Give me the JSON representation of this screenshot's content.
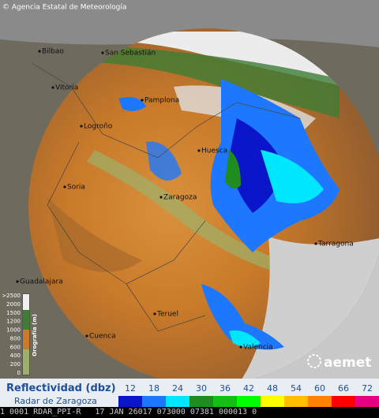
{
  "header": {
    "copyright": "© Agencia Estatal de Meteorología"
  },
  "cities": [
    {
      "name": "Bilbao"
    },
    {
      "name": "San Sebastián"
    },
    {
      "name": "Vitoria"
    },
    {
      "name": "Pamplona"
    },
    {
      "name": "Logroño"
    },
    {
      "name": "Huesca"
    },
    {
      "name": "Soria"
    },
    {
      "name": "Zaragoza"
    },
    {
      "name": "Tarragona"
    },
    {
      "name": "Guadalajara"
    },
    {
      "name": "Teruel"
    },
    {
      "name": "Cuenca"
    },
    {
      "name": "Valencia"
    }
  ],
  "orography": {
    "title": "Orografía (m)",
    "labels": [
      ">2500",
      "2000",
      "1500",
      "1200",
      "1000",
      "800",
      "600",
      "400",
      "200",
      "0"
    ]
  },
  "logo": "aemet",
  "legend": {
    "title": "Reflectividad (dbz)",
    "subtitle": "Radar de Zaragoza",
    "values": [
      12,
      18,
      24,
      30,
      36,
      42,
      48,
      54,
      60,
      66,
      72
    ],
    "colors": [
      "#0a14c8",
      "#1e78ff",
      "#00e6ff",
      "#1e8c1e",
      "#14be14",
      "#00ff00",
      "#ffff00",
      "#ffbe00",
      "#ff8200",
      "#ff0000",
      "#e60082"
    ]
  },
  "status_bar": "1 0001 RDAR_PPI-R   17 JAN 26017 073000 07381 000013 0"
}
